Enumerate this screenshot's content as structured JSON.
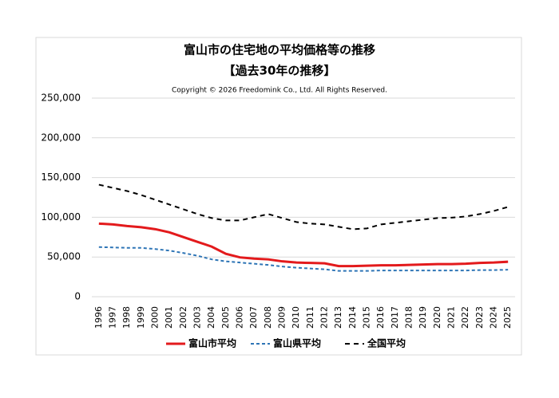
{
  "chart_data": {
    "type": "line",
    "title": "富山市の住宅地の平均価格等の推移",
    "subtitle": "【過去30年の推移】",
    "note": "Copyright © 2026 Freedomink Co., Ltd. All Rights Reserved.",
    "categories": [
      "1996",
      "1997",
      "1998",
      "1999",
      "2000",
      "2001",
      "2002",
      "2003",
      "2004",
      "2005",
      "2006",
      "2007",
      "2008",
      "2009",
      "2010",
      "2011",
      "2012",
      "2013",
      "2014",
      "2015",
      "2016",
      "2017",
      "2018",
      "2019",
      "2020",
      "2021",
      "2022",
      "2023",
      "2024",
      "2025"
    ],
    "series": [
      {
        "name": "富山市平均",
        "color": "#e31a1c",
        "style": "solid",
        "values": [
          92000,
          91000,
          89000,
          87500,
          85000,
          81000,
          75000,
          69000,
          63000,
          54000,
          49500,
          48000,
          47000,
          44500,
          43000,
          42500,
          42000,
          38500,
          38500,
          39000,
          39500,
          39500,
          40000,
          40500,
          41000,
          41000,
          41500,
          42500,
          43000,
          44000
        ]
      },
      {
        "name": "富山県平均",
        "color": "#2e75b6",
        "style": "dashed",
        "values": [
          62500,
          62000,
          61500,
          61500,
          60000,
          58000,
          55000,
          51500,
          47000,
          44500,
          43000,
          41500,
          40000,
          38000,
          36500,
          35500,
          34500,
          32500,
          32500,
          32500,
          33000,
          33000,
          33000,
          33000,
          33000,
          33000,
          33000,
          33500,
          33500,
          34000
        ]
      },
      {
        "name": "全国平均",
        "color": "#000000",
        "style": "dashed",
        "values": [
          141000,
          137000,
          133000,
          128000,
          122000,
          116000,
          110000,
          104000,
          99000,
          96000,
          96000,
          100000,
          104000,
          99000,
          94000,
          92000,
          91000,
          88000,
          85000,
          86000,
          91000,
          93000,
          95000,
          97000,
          99000,
          99500,
          101000,
          104000,
          108000,
          113000
        ]
      }
    ],
    "ylim": [
      0,
      250000
    ],
    "yticks": [
      0,
      {
        "value": 50000,
        "label": "50,000"
      },
      {
        "value": 100000,
        "label": "100,000"
      },
      {
        "value": 150000,
        "label": "150,000"
      },
      {
        "value": 200000,
        "label": "200,000"
      },
      {
        "value": 250000,
        "label": "250,000"
      }
    ],
    "grid": true,
    "legend": "bottom"
  }
}
